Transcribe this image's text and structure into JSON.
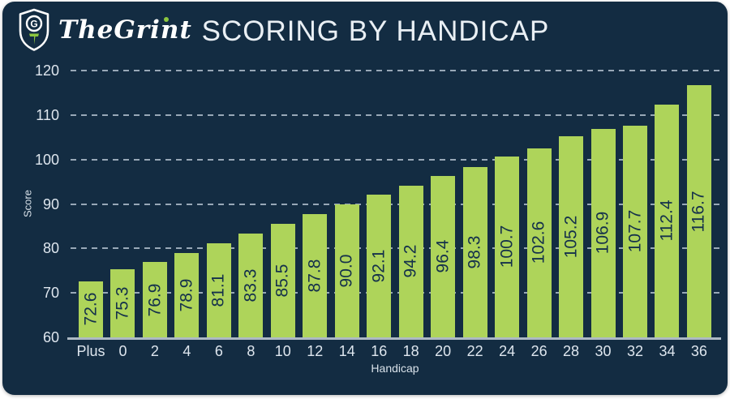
{
  "brand": {
    "name": "TheGrint",
    "logo_icon": "shield-golf-tee-icon",
    "accent_green": "#8CC63F"
  },
  "header": {
    "title": "SCORING BY HANDICAP"
  },
  "colors": {
    "card_background": "#132C42",
    "bar_fill": "#AED45A",
    "bar_label_text": "#14304B",
    "axis_text": "#DEE6EE",
    "gridline": "#C4D2DE",
    "baseline": "#ADB9C4",
    "title_text": "#E9EFF4"
  },
  "chart_data": {
    "type": "bar",
    "title": "SCORING BY HANDICAP",
    "xlabel": "Handicap",
    "ylabel": "Score",
    "categories": [
      "Plus",
      "0",
      "2",
      "4",
      "6",
      "8",
      "10",
      "12",
      "14",
      "16",
      "18",
      "20",
      "22",
      "24",
      "26",
      "28",
      "30",
      "32",
      "34",
      "36"
    ],
    "values": [
      72.6,
      75.3,
      76.9,
      78.9,
      81.1,
      83.3,
      85.5,
      87.8,
      90.0,
      92.1,
      94.2,
      96.4,
      98.3,
      100.7,
      102.6,
      105.2,
      106.9,
      107.7,
      112.4,
      116.7
    ],
    "value_labels": [
      "72.6",
      "75.3",
      "76.9",
      "78.9",
      "81.1",
      "83.3",
      "85.5",
      "87.8",
      "90.0",
      "92.1",
      "94.2",
      "96.4",
      "98.3",
      "100.7",
      "102.6",
      "105.2",
      "106.9",
      "107.7",
      "112.4",
      "116.7"
    ],
    "ylim": [
      60,
      120
    ],
    "yticks": [
      60,
      70,
      80,
      90,
      100,
      110,
      120
    ],
    "grid": "horizontal-dashed",
    "legend": "none",
    "bar_color": "#AED45A",
    "background": "#132C42"
  }
}
